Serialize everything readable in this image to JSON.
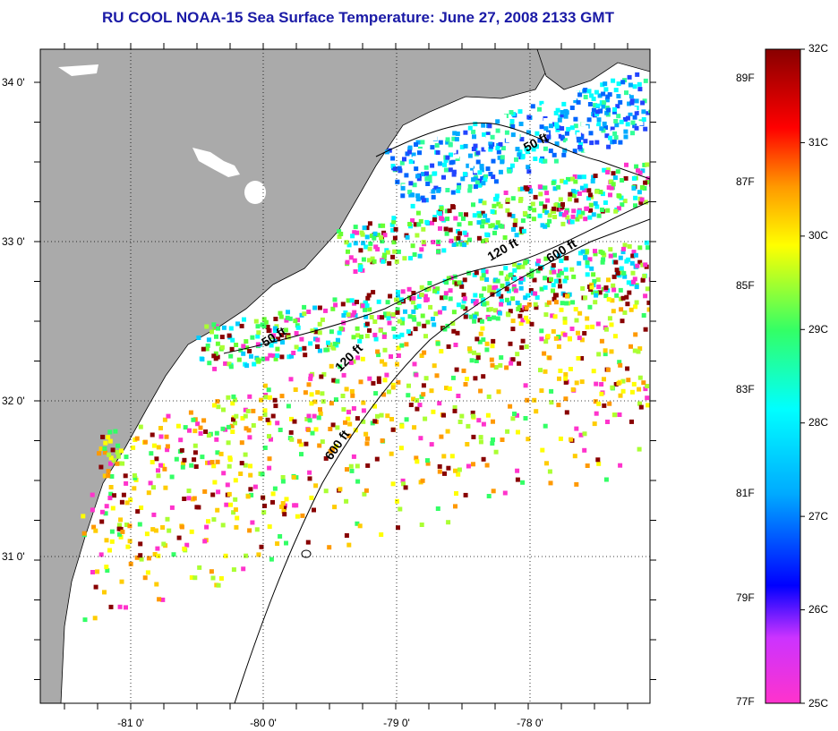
{
  "title": "RU COOL  NOAA-15  Sea Surface Temperature:  June 27, 2008 2133 GMT",
  "axes": {
    "lat_labels": [
      "34 0'",
      "33 0'",
      "32 0'",
      "31 0'"
    ],
    "lon_labels": [
      "-81 0'",
      "-80 0'",
      "-79 0'",
      "-78 0'"
    ]
  },
  "contours": [
    "50 ft",
    "50 ft",
    "120 ft",
    "120 ft",
    "600 ft",
    "600 ft"
  ],
  "colorbar": {
    "celsius": [
      "32C",
      "31C",
      "30C",
      "29C",
      "28C",
      "27C",
      "26C",
      "25C"
    ],
    "fahrenheit": [
      "89F",
      "87F",
      "85F",
      "83F",
      "81F",
      "79F",
      "77F"
    ]
  },
  "colors": {
    "land": "#aaaaaa",
    "title": "#1a1aa6",
    "sst_scale": [
      "#ff33cc",
      "#cc33ff",
      "#0000ff",
      "#00aaff",
      "#00ffff",
      "#33ff66",
      "#ffff00",
      "#ff9900",
      "#ff0000",
      "#880000"
    ]
  }
}
